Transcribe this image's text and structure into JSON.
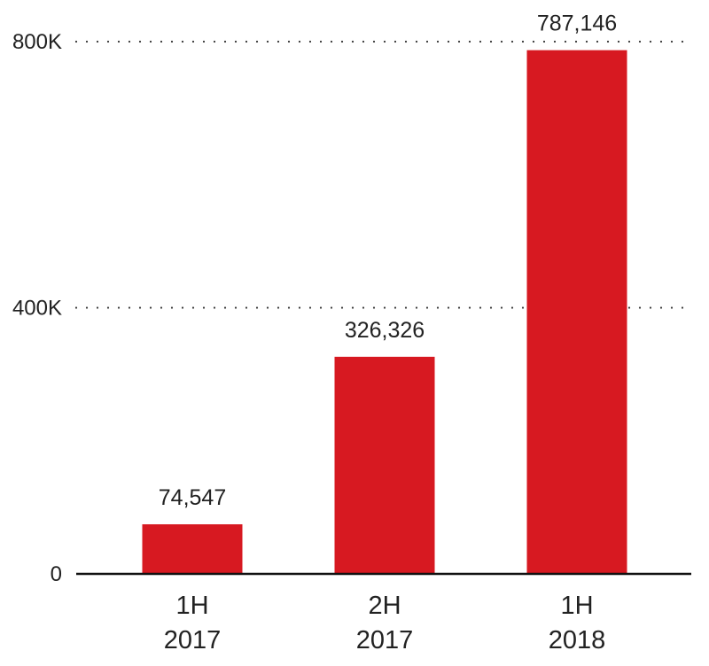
{
  "chart_data": {
    "type": "bar",
    "categories": [
      [
        "1H",
        "2017"
      ],
      [
        "2H",
        "2017"
      ],
      [
        "1H",
        "2018"
      ]
    ],
    "values": [
      74547,
      326326,
      787146
    ],
    "value_labels": [
      "74,547",
      "326,326",
      "787,146"
    ],
    "y_ticks": [
      {
        "value": 0,
        "label": "0"
      },
      {
        "value": 400000,
        "label": "400K"
      },
      {
        "value": 800000,
        "label": "800K"
      }
    ],
    "ylim": [
      0,
      800000
    ],
    "grid": "dotted horizontal",
    "bar_color": "#d71921",
    "text_color": "#222222",
    "axis_color": "#111111"
  }
}
